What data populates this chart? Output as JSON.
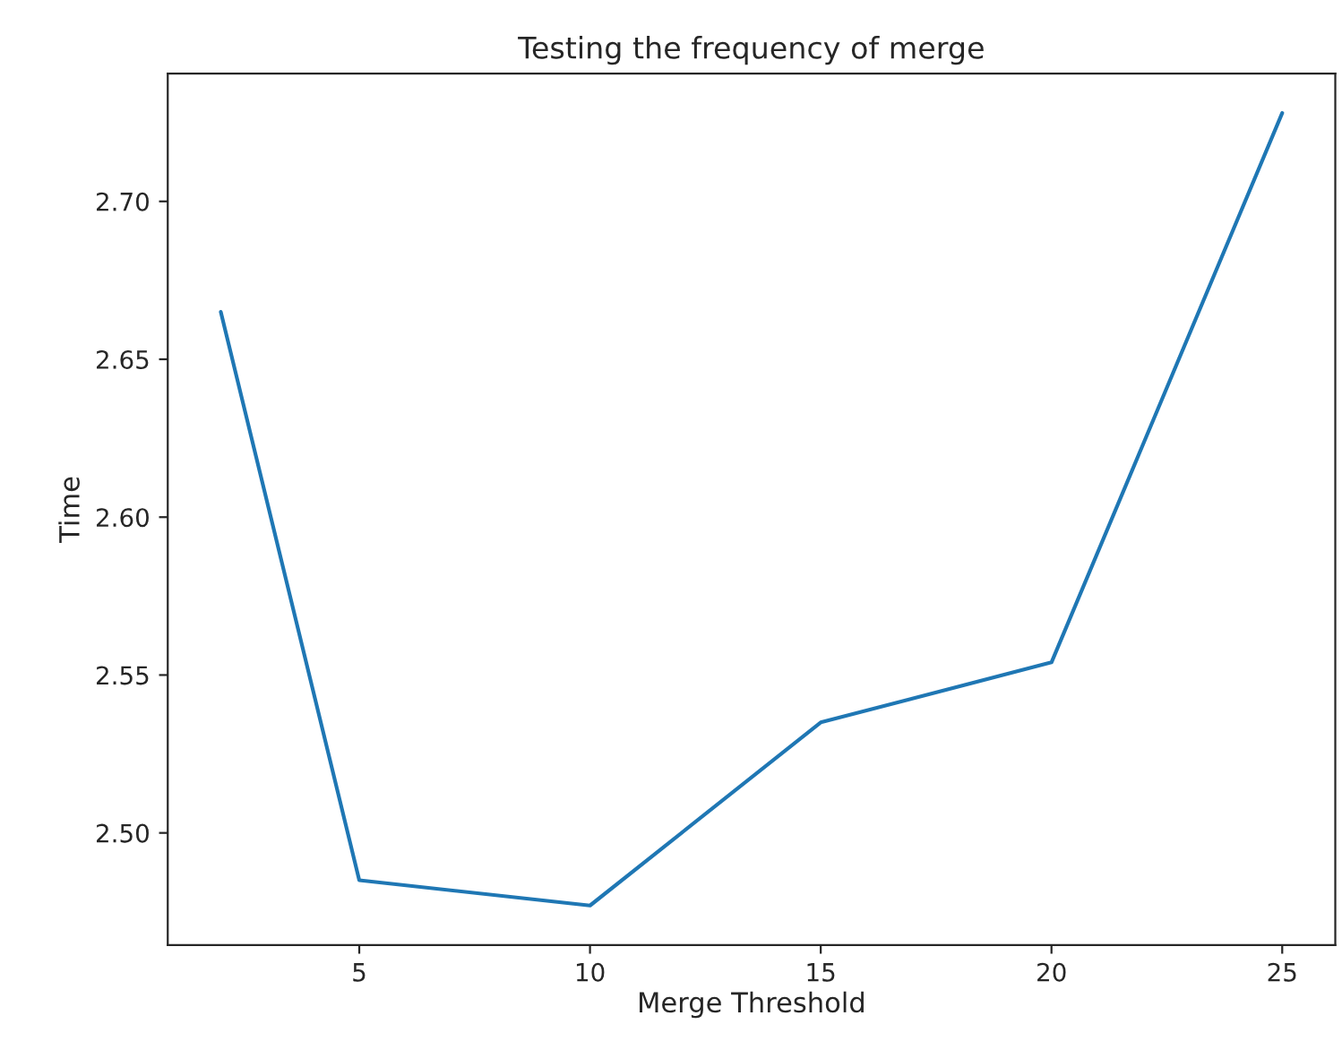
{
  "chart_data": {
    "type": "line",
    "title": "Testing the frequency of merge",
    "xlabel": "Merge Threshold",
    "ylabel": "Time",
    "x": [
      2,
      5,
      10,
      15,
      20,
      25
    ],
    "series": [
      {
        "color": "#1f77b4",
        "values": [
          2.665,
          2.485,
          2.477,
          2.535,
          2.554,
          2.728
        ]
      }
    ],
    "xlim": [
      0.85,
      26.15
    ],
    "xticks": [
      5,
      10,
      15,
      20,
      25
    ],
    "ylim": [
      2.4645,
      2.7405
    ],
    "yticks": [
      {
        "value": 2.5,
        "label": "2.50"
      },
      {
        "value": 2.55,
        "label": "2.55"
      },
      {
        "value": 2.6,
        "label": "2.60"
      },
      {
        "value": 2.65,
        "label": "2.65"
      },
      {
        "value": 2.7,
        "label": "2.70"
      }
    ],
    "grid": false,
    "marker": "none",
    "line_style": "solid"
  }
}
